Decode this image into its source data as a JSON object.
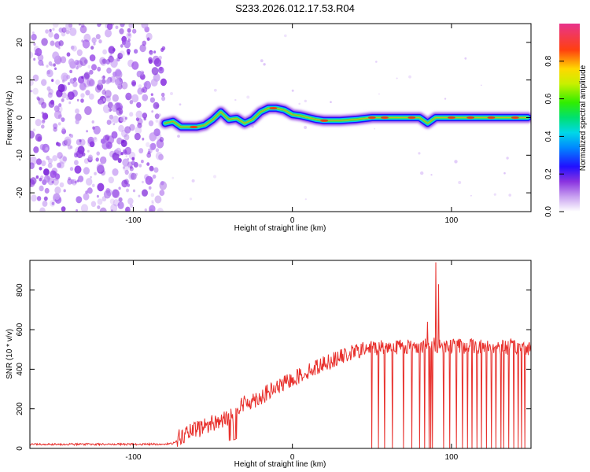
{
  "title": "S233.2026.012.17.53.R04",
  "colors": {
    "frame": "#000000",
    "snr_line": "#e8302c",
    "noise_purple": "#8a33e0",
    "colorbar_top": "#e0338c"
  },
  "chart_data": [
    {
      "type": "heatmap",
      "name": "spectrogram",
      "xlabel": "Height of straight line (km)",
      "ylabel": "Frequency (Hz)",
      "xlim": [
        -165,
        150
      ],
      "ylim": [
        -25,
        25
      ],
      "xticks": [
        {
          "value": -100,
          "label": "-100"
        },
        {
          "value": 0,
          "label": "0"
        },
        {
          "value": 100,
          "label": "100"
        }
      ],
      "yticks": [
        {
          "value": 20,
          "label": "20"
        },
        {
          "value": 10,
          "label": "10"
        },
        {
          "value": 0,
          "label": "0"
        },
        {
          "value": -10,
          "label": "-10"
        },
        {
          "value": -20,
          "label": "-20"
        }
      ],
      "noise_region_x": [
        -165,
        -80
      ],
      "ridge": {
        "x": [
          -80,
          -75,
          -70,
          -65,
          -60,
          -55,
          -50,
          -45,
          -40,
          -35,
          -30,
          -25,
          -20,
          -15,
          -10,
          -5,
          0,
          5,
          10,
          15,
          20,
          30,
          40,
          50,
          60,
          70,
          80,
          85,
          90,
          100,
          110,
          120,
          130,
          140,
          148
        ],
        "y": [
          -1.5,
          -1.0,
          -2.5,
          -2.5,
          -2.5,
          -2.0,
          -0.5,
          1.5,
          -0.5,
          -0.2,
          -1.5,
          -0.5,
          1.5,
          2.5,
          2.5,
          2.0,
          0.8,
          0.5,
          0.0,
          -0.5,
          -0.8,
          -0.8,
          -0.5,
          0.0,
          0.0,
          0.0,
          0.0,
          -1.5,
          0.0,
          0.0,
          0.0,
          0.0,
          0.0,
          0.0,
          0.0
        ]
      },
      "colorbar": {
        "label": "Normalized spectral amplitude",
        "range": [
          0,
          1
        ],
        "ticks": [
          {
            "value": 0.0,
            "label": "0.0"
          },
          {
            "value": 0.2,
            "label": "0.2"
          },
          {
            "value": 0.4,
            "label": "0.4"
          },
          {
            "value": 0.6,
            "label": "0.6"
          },
          {
            "value": 0.8,
            "label": "0.8"
          }
        ]
      }
    },
    {
      "type": "line",
      "name": "snr",
      "xlabel": "Height of straight line (km)",
      "ylabel": "SNR (10 * v/v)",
      "xlim": [
        -165,
        150
      ],
      "ylim": [
        0,
        950
      ],
      "xticks": [
        {
          "value": -100,
          "label": "-100"
        },
        {
          "value": 0,
          "label": "0"
        },
        {
          "value": 100,
          "label": "100"
        }
      ],
      "yticks": [
        {
          "value": 0,
          "label": "0"
        },
        {
          "value": 200,
          "label": "200"
        },
        {
          "value": 400,
          "label": "400"
        },
        {
          "value": 600,
          "label": "600"
        },
        {
          "value": 800,
          "label": "800"
        }
      ],
      "trend": {
        "x": [
          -165,
          -80,
          -75,
          -70,
          -50,
          -40,
          -30,
          -20,
          0,
          20,
          40,
          50,
          90,
          150
        ],
        "y": [
          20,
          20,
          25,
          60,
          130,
          150,
          230,
          260,
          350,
          430,
          490,
          510,
          520,
          510
        ]
      },
      "dropouts_x": [
        50,
        54,
        58,
        63,
        70,
        75,
        80,
        83,
        85,
        86,
        87,
        88,
        92,
        95,
        99,
        103,
        107,
        110,
        113,
        116,
        119,
        122,
        125,
        128,
        131,
        133,
        136,
        139,
        142,
        144,
        146
      ],
      "spikes": [
        {
          "x": 90,
          "y": 940
        },
        {
          "x": 92,
          "y": 830
        },
        {
          "x": 85,
          "y": 640
        }
      ]
    }
  ]
}
